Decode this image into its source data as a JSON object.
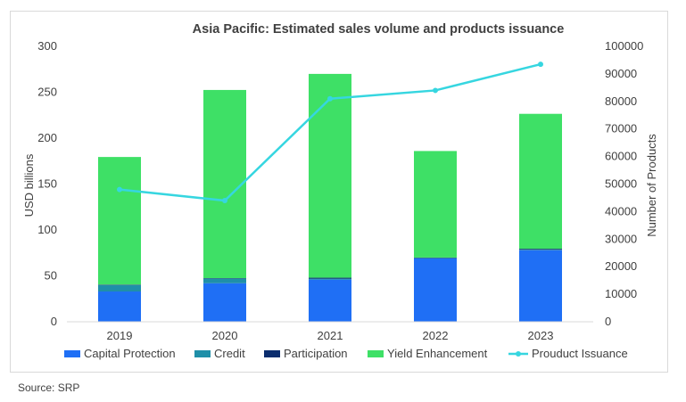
{
  "chart_data": {
    "type": "bar",
    "title": "Asia Pacific: Estimated sales volume and products issuance",
    "categories": [
      "2019",
      "2020",
      "2021",
      "2022",
      "2023"
    ],
    "series": [
      {
        "name": "Capital Protection",
        "axis": "left",
        "kind": "stacked-bar",
        "color": "#1f6ff5",
        "values": [
          33,
          42,
          46,
          69,
          78
        ]
      },
      {
        "name": "Credit",
        "axis": "left",
        "kind": "stacked-bar",
        "color": "#1f8fa8",
        "values": [
          7,
          5,
          1,
          0.5,
          0.5
        ]
      },
      {
        "name": "Participation",
        "axis": "left",
        "kind": "stacked-bar",
        "color": "#0b2d6e",
        "values": [
          0.5,
          0.5,
          1,
          0.5,
          1
        ]
      },
      {
        "name": "Yield Enhancement",
        "axis": "left",
        "kind": "stacked-bar",
        "color": "#3ee066",
        "values": [
          139,
          205,
          222,
          116,
          147
        ]
      },
      {
        "name": "Prouduct Issuance",
        "axis": "right",
        "kind": "line",
        "color": "#36d6e0",
        "values": [
          48000,
          44000,
          81000,
          84000,
          93500
        ]
      }
    ],
    "ylabel": "USD billions",
    "y2label": "Number of Products",
    "ylim": [
      0,
      300
    ],
    "y2lim": [
      0,
      100000
    ],
    "yticks": [
      "0",
      "50",
      "100",
      "150",
      "200",
      "250",
      "300"
    ],
    "y2ticks": [
      "0",
      "10000",
      "20000",
      "30000",
      "40000",
      "50000",
      "60000",
      "70000",
      "80000",
      "90000",
      "100000"
    ],
    "legend_position": "bottom",
    "grid": false
  },
  "source_text": "Source: SRP"
}
